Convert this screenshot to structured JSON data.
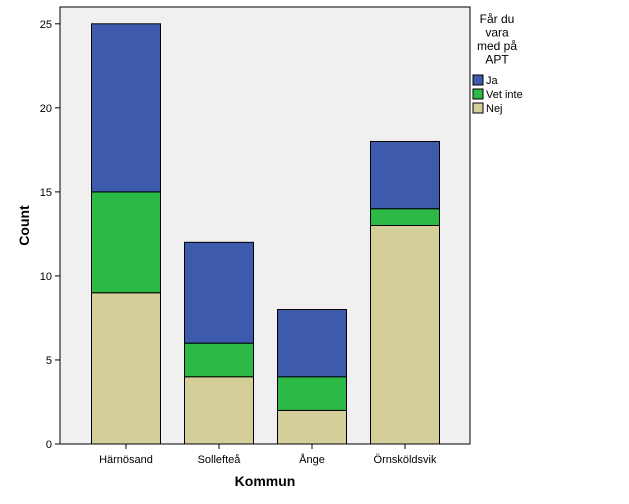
{
  "chart_data": {
    "type": "bar",
    "stacked": true,
    "categories": [
      "Härnösand",
      "Sollefteå",
      "Ånge",
      "Örnsköldsvik"
    ],
    "series": [
      {
        "name": "Nej",
        "values": [
          9,
          4,
          2,
          13
        ],
        "color": "#d4cf98"
      },
      {
        "name": "Vet inte",
        "values": [
          6,
          2,
          2,
          1
        ],
        "color": "#2db945"
      },
      {
        "name": "Ja",
        "values": [
          10,
          6,
          4,
          4
        ],
        "color": "#3d5aad"
      }
    ],
    "legend_order": [
      "Ja",
      "Vet inte",
      "Nej"
    ],
    "legend_title_lines": [
      "Får du",
      "vara",
      "med på",
      "APT"
    ],
    "legend_position": "right",
    "xlabel": "Kommun",
    "ylabel": "Count",
    "ylim": [
      0,
      26
    ],
    "yticks": [
      0,
      5,
      10,
      15,
      20,
      25
    ],
    "grid": false,
    "plot_background": "#f0f0f0"
  }
}
